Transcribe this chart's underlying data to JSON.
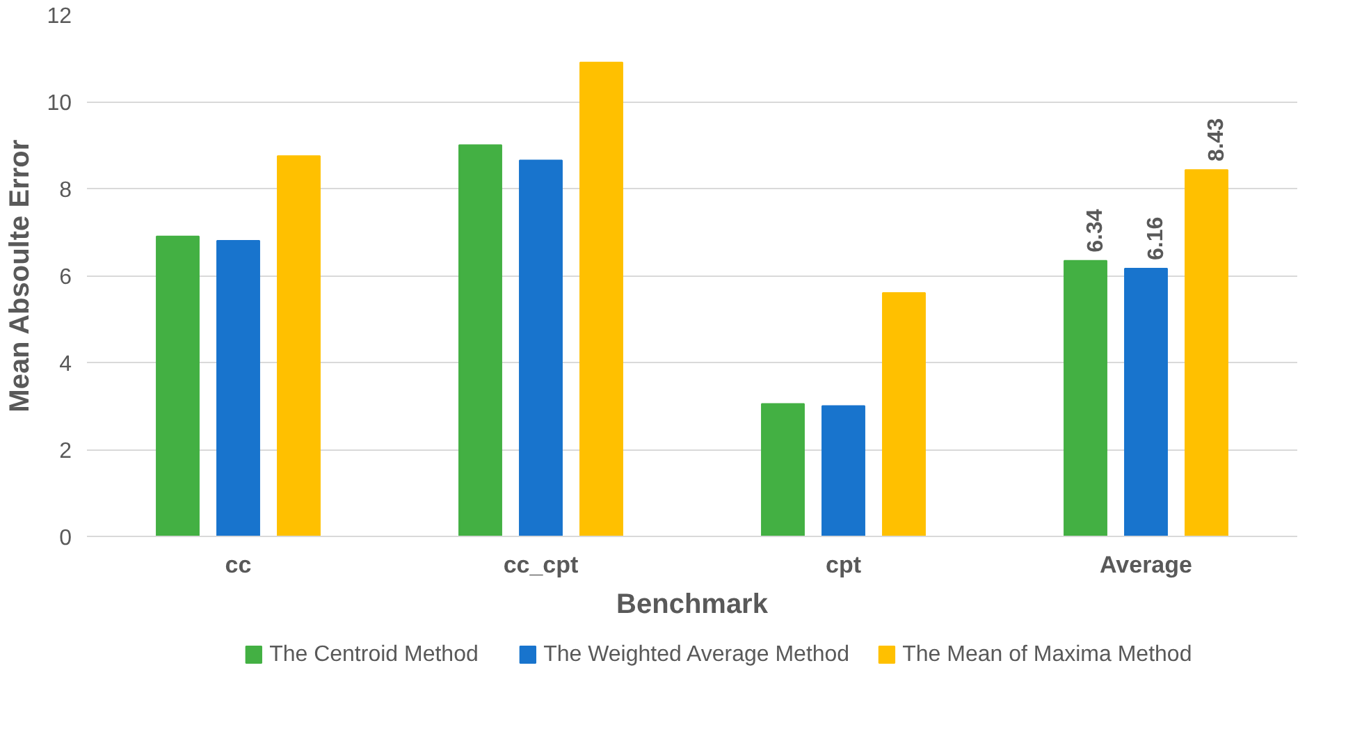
{
  "chart_data": {
    "type": "bar",
    "xlabel": "Benchmark",
    "ylabel": "Mean Absoulte Error",
    "categories": [
      "cc",
      "cc_cpt",
      "cpt",
      "Average"
    ],
    "series": [
      {
        "name": "The Centroid Method",
        "color": "#43b043",
        "values": [
          6.9,
          9.0,
          3.05,
          6.34
        ],
        "value_labels": [
          null,
          null,
          null,
          "6.34"
        ]
      },
      {
        "name": "The Weighted Average Method",
        "color": "#1874cd",
        "values": [
          6.8,
          8.65,
          3.0,
          6.16
        ],
        "value_labels": [
          null,
          null,
          null,
          "6.16"
        ]
      },
      {
        "name": "The Mean of Maxima Method",
        "color": "#ffc000",
        "values": [
          8.75,
          10.9,
          5.6,
          8.43
        ],
        "value_labels": [
          null,
          null,
          null,
          "8.43"
        ]
      }
    ],
    "ylim": [
      0,
      12
    ],
    "yticks": [
      0,
      2,
      4,
      6,
      8,
      10,
      12
    ],
    "grid": "y",
    "legend": "bottom"
  }
}
